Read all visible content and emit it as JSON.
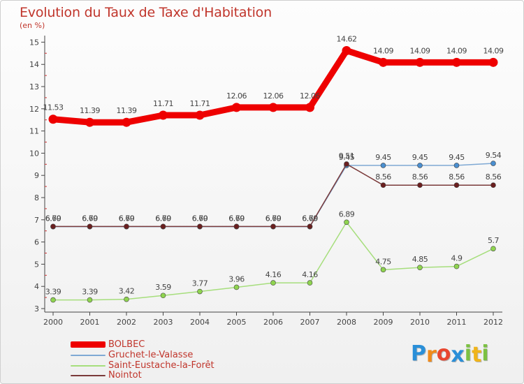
{
  "title": "Evolution du Taux de Taxe d'Habitation",
  "subtitle": "(en %)",
  "colors": {
    "title": "#c0352b",
    "axis": "#555555",
    "grid": "#d9d9d9"
  },
  "chart_data": {
    "type": "line",
    "title": "Evolution du Taux de Taxe d'Habitation",
    "subtitle": "(en %)",
    "xlabel": "",
    "ylabel": "",
    "ylim": [
      3,
      15
    ],
    "yticks": [
      3,
      4,
      5,
      6,
      7,
      8,
      9,
      10,
      11,
      12,
      13,
      14,
      15
    ],
    "grid": false,
    "legend_position": "bottom-left",
    "categories": [
      "2000",
      "2001",
      "2002",
      "2003",
      "2004",
      "2005",
      "2006",
      "2007",
      "2008",
      "2009",
      "2010",
      "2011",
      "2012"
    ],
    "series": [
      {
        "name": "BOLBEC",
        "color": "#ee0000",
        "stroke": 9,
        "values": [
          11.53,
          11.39,
          11.39,
          11.71,
          11.71,
          12.06,
          12.06,
          12.06,
          14.62,
          14.09,
          14.09,
          14.09,
          14.09
        ],
        "labels": [
          "11.53",
          "11.39",
          "11.39",
          "11.71",
          "11.71",
          "12.06",
          "12.06",
          "12.06",
          "14.62",
          "14.09",
          "14.09",
          "14.09",
          "14.09"
        ]
      },
      {
        "name": "Gruchet-le-Valasse",
        "color": "#7fa9d4",
        "marker": "#4a8fd0",
        "stroke": 1.5,
        "values": [
          6.69,
          6.69,
          6.69,
          6.69,
          6.69,
          6.69,
          6.69,
          6.69,
          9.45,
          9.45,
          9.45,
          9.45,
          9.54
        ],
        "labels": [
          "6.69",
          "6.69",
          "6.69",
          "6.69",
          "6.69",
          "6.69",
          "6.69",
          "6.69",
          "9.45",
          "9.45",
          "9.45",
          "9.45",
          "9.54"
        ]
      },
      {
        "name": "Saint-Eustache-la-Forêt",
        "color": "#a6de7c",
        "marker": "#8fd44f",
        "stroke": 1.5,
        "values": [
          3.39,
          3.39,
          3.42,
          3.59,
          3.77,
          3.96,
          4.16,
          4.16,
          6.89,
          4.75,
          4.85,
          4.9,
          5.7
        ],
        "labels": [
          "3.39",
          "3.39",
          "3.42",
          "3.59",
          "3.77",
          "3.96",
          "4.16",
          "4.16",
          "6.89",
          "4.75",
          "4.85",
          "4.9",
          "5.7"
        ]
      },
      {
        "name": "Nointot",
        "color": "#7a3a3a",
        "marker": "#6b1f1f",
        "stroke": 1.5,
        "values": [
          6.7,
          6.7,
          6.7,
          6.7,
          6.7,
          6.7,
          6.7,
          6.7,
          9.51,
          8.56,
          8.56,
          8.56,
          8.56
        ],
        "labels": [
          "6.70",
          "6.70",
          "6.70",
          "6.70",
          "6.70",
          "6.70",
          "6.70",
          "6.70",
          "9.51",
          "8.56",
          "8.56",
          "8.56",
          "8.56"
        ]
      }
    ]
  },
  "legend": [
    "BOLBEC",
    "Gruchet-le-Valasse",
    "Saint-Eustache-la-Forêt",
    "Nointot"
  ],
  "logo": {
    "text": "Proxiti",
    "letter_colors": [
      "#2a8fd8",
      "#f08a1a",
      "#e8462f",
      "#2a8fd8",
      "#7cc142",
      "#f0b41a",
      "#7cc142"
    ]
  }
}
